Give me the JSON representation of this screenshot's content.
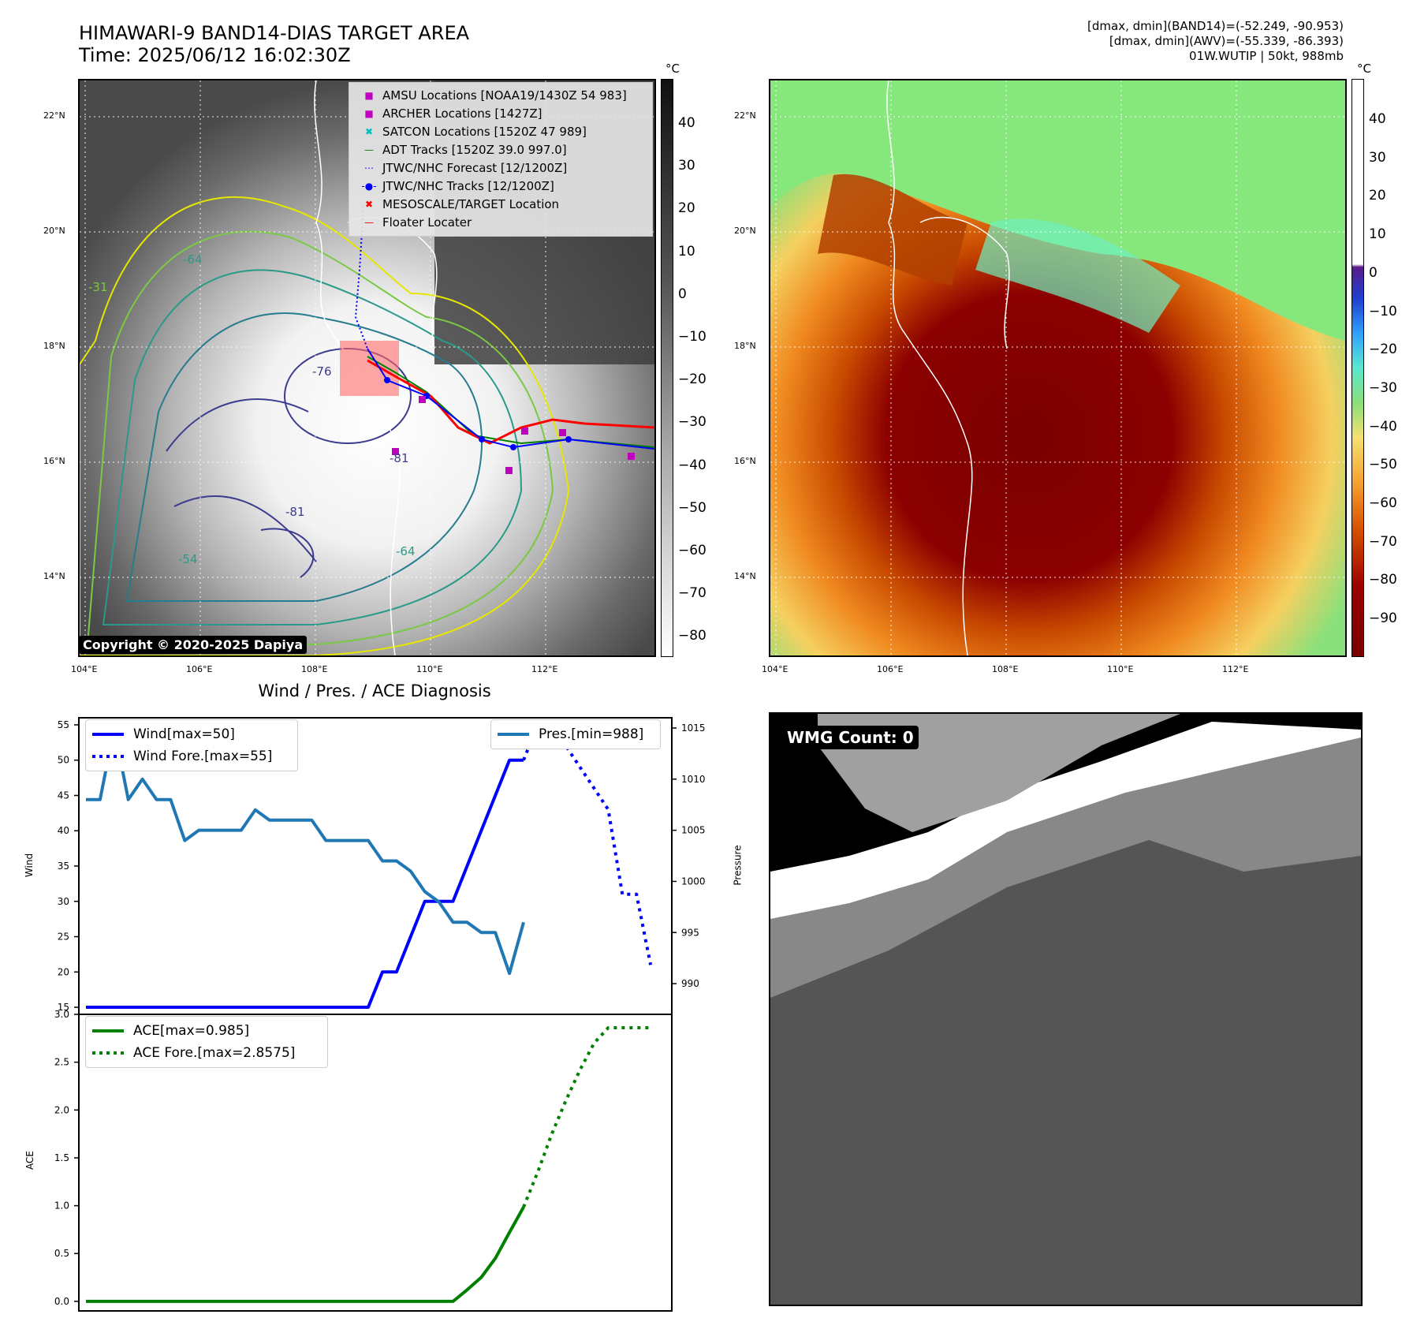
{
  "header": {
    "title_line1": "HIMAWARI-9 BAND14-DIAS TARGET AREA",
    "title_line2": "Time: 2025/06/12 16:02:30Z",
    "right_line1": "[dmax, dmin](BAND14)=(-52.249, -90.953)",
    "right_line2": "[dmax, dmin](AWV)=(-55.339, -86.393)",
    "right_line3": "01W.WUTIP | 50kt, 988mb"
  },
  "map": {
    "lat_labels": [
      "22°N",
      "20°N",
      "18°N",
      "16°N",
      "14°N"
    ],
    "lon_labels": [
      "104°E",
      "106°E",
      "108°E",
      "110°E",
      "112°E"
    ],
    "contour_labels": [
      "-31",
      "-64",
      "-76",
      "-81",
      "-54",
      "-64",
      "-81"
    ],
    "copyright": "Copyright © 2020-2025 Dapiya",
    "colorbar_unit": "°C",
    "left_colorbar_ticks": [
      "40",
      "30",
      "20",
      "10",
      "0",
      "−10",
      "−20",
      "−30",
      "−40",
      "−50",
      "−60",
      "−70",
      "−80"
    ],
    "right_colorbar_ticks": [
      "40",
      "30",
      "20",
      "10",
      "0",
      "−10",
      "−20",
      "−30",
      "−40",
      "−50",
      "−60",
      "−70",
      "−80",
      "−90"
    ],
    "legend": [
      {
        "symbol": "■",
        "color": "#bf00bf",
        "label": "AMSU Locations [NOAA19/1430Z 54 983]"
      },
      {
        "symbol": "■",
        "color": "#bf00bf",
        "label": "ARCHER Locations [1427Z]"
      },
      {
        "symbol": "✖",
        "color": "#00bfbf",
        "label": "SATCON Locations [1520Z 47 989]"
      },
      {
        "symbol": "—",
        "color": "#008000",
        "label": "ADT Tracks [1520Z 39.0 997.0]"
      },
      {
        "symbol": "⋯",
        "color": "#0000ff",
        "label": "JTWC/NHC Forecast [12/1200Z]"
      },
      {
        "symbol": "-●-",
        "color": "#0000ff",
        "label": "JTWC/NHC Tracks [12/1200Z]"
      },
      {
        "symbol": "✖",
        "color": "#ff0000",
        "label": "MESOSCALE/TARGET Location"
      },
      {
        "symbol": "—",
        "color": "#ff0000",
        "label": "Floater Locater"
      }
    ]
  },
  "diagnosis": {
    "title": "Wind / Pres. / ACE Diagnosis",
    "wind_axis_label": "Wind",
    "pressure_axis_label": "Pressure",
    "ace_axis_label": "ACE",
    "legend_wind": "Wind[max=50]",
    "legend_wind_fore": "Wind Fore.[max=55]",
    "legend_pres": "Pres.[min=988]",
    "legend_ace": "ACE[max=0.985]",
    "legend_ace_fore": "ACE Fore.[max=2.8575]"
  },
  "wmg": {
    "label": "WMG Count: 0"
  },
  "chart_data": [
    {
      "type": "line",
      "title": "Wind / Pres. / ACE Diagnosis",
      "ylabel": "Wind",
      "y2label": "Pressure",
      "ylim": [
        14,
        56
      ],
      "y2lim": [
        987,
        1016
      ],
      "yticks": [
        15,
        20,
        25,
        30,
        35,
        40,
        45,
        50,
        55
      ],
      "y2ticks": [
        990,
        995,
        1000,
        1005,
        1010,
        1015
      ],
      "series": [
        {
          "name": "Wind[max=50]",
          "axis": "left",
          "color": "#0000ff",
          "style": "solid",
          "x": [
            0,
            1,
            2,
            3,
            4,
            5,
            6,
            7,
            8,
            9,
            10,
            11,
            12,
            13,
            14,
            15,
            16,
            17,
            18,
            19,
            20,
            21,
            22,
            23,
            24,
            25,
            26,
            27,
            28,
            29,
            30,
            31
          ],
          "values": [
            15,
            15,
            15,
            15,
            15,
            15,
            15,
            15,
            15,
            15,
            15,
            15,
            15,
            15,
            15,
            15,
            15,
            15,
            15,
            15,
            15,
            20,
            20,
            25,
            30,
            30,
            30,
            35,
            40,
            45,
            50,
            50
          ]
        },
        {
          "name": "Wind Fore.[max=55]",
          "axis": "left",
          "color": "#0000ff",
          "style": "dotted",
          "x": [
            31,
            32,
            33,
            34,
            35,
            36,
            37,
            38,
            39,
            40
          ],
          "values": [
            50,
            55,
            55,
            52,
            49,
            46,
            43,
            31,
            31,
            21
          ]
        },
        {
          "name": "Pres.[min=988]",
          "axis": "right",
          "color": "#1f77b4",
          "style": "solid",
          "x": [
            0,
            1,
            2,
            3,
            4,
            5,
            6,
            7,
            8,
            9,
            10,
            11,
            12,
            13,
            14,
            15,
            16,
            17,
            18,
            19,
            20,
            21,
            22,
            23,
            24,
            25,
            26,
            27,
            28,
            29,
            30,
            31
          ],
          "values": [
            1008,
            1008,
            1015,
            1008,
            1010,
            1008,
            1008,
            1004,
            1005,
            1005,
            1005,
            1005,
            1007,
            1006,
            1006,
            1006,
            1006,
            1004,
            1004,
            1004,
            1004,
            1002,
            1002,
            1001,
            999,
            998,
            996,
            996,
            995,
            995,
            991,
            996
          ]
        }
      ]
    },
    {
      "type": "line",
      "ylabel": "ACE",
      "ylim": [
        -0.1,
        3.0
      ],
      "yticks": [
        0.0,
        0.5,
        1.0,
        1.5,
        2.0,
        2.5,
        3.0
      ],
      "series": [
        {
          "name": "ACE[max=0.985]",
          "color": "#008000",
          "style": "solid",
          "x": [
            0,
            25,
            26,
            27,
            28,
            29,
            30,
            31
          ],
          "values": [
            0,
            0,
            0.0,
            0.12,
            0.25,
            0.45,
            0.72,
            0.985
          ]
        },
        {
          "name": "ACE Fore.[max=2.8575]",
          "color": "#008000",
          "style": "dotted",
          "x": [
            31,
            32,
            33,
            34,
            35,
            36,
            37,
            38,
            39,
            40
          ],
          "values": [
            0.985,
            1.35,
            1.75,
            2.1,
            2.42,
            2.7,
            2.86,
            2.86,
            2.86,
            2.86
          ]
        }
      ]
    }
  ]
}
